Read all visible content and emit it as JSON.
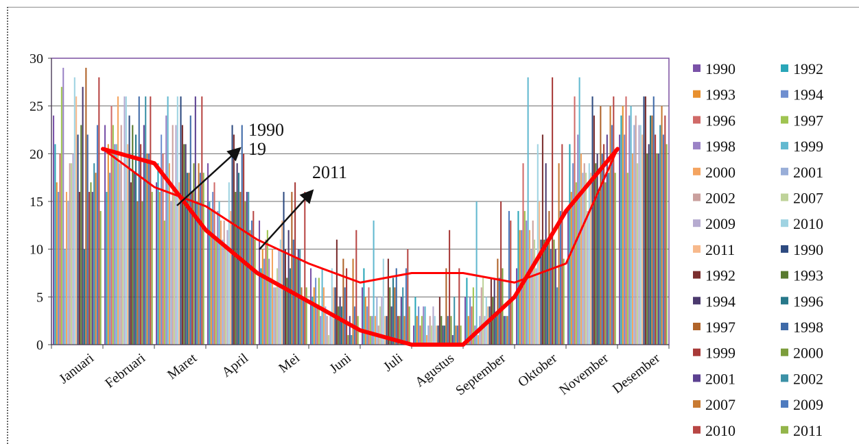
{
  "chart_data": {
    "type": "bar",
    "categories": [
      "Januari",
      "Februari",
      "Maret",
      "April",
      "Mei",
      "Juni",
      "Juli",
      "Agustus",
      "September",
      "Oktober",
      "November",
      "Desember"
    ],
    "ylim": [
      0,
      30
    ],
    "yticks": [
      0,
      5,
      10,
      15,
      20,
      25,
      30
    ],
    "grid": true,
    "legend_position": "right",
    "series": [
      {
        "name": "1990",
        "color": "#7a52a8",
        "values": [
          24,
          23,
          17,
          19,
          13,
          8,
          6,
          2,
          5,
          8,
          14,
          22
        ]
      },
      {
        "name": "1992",
        "color": "#2aa6b8",
        "values": [
          21,
          16,
          19,
          15,
          8,
          5,
          8,
          5,
          7,
          14,
          21,
          24
        ]
      },
      {
        "name": "1993",
        "color": "#e8902e",
        "values": [
          17,
          21,
          16,
          14,
          10,
          6,
          5,
          3,
          3,
          12,
          16,
          25
        ]
      },
      {
        "name": "1994",
        "color": "#6f8fd0",
        "values": [
          16,
          18,
          22,
          16,
          9,
          7,
          4,
          4,
          5,
          12,
          19,
          22
        ]
      },
      {
        "name": "1996",
        "color": "#d06a68",
        "values": [
          20,
          25,
          20,
          17,
          11,
          4,
          6,
          2,
          4,
          19,
          26,
          26
        ]
      },
      {
        "name": "1997",
        "color": "#9fc451",
        "values": [
          27,
          23,
          13,
          11,
          12,
          7,
          3,
          3,
          6,
          14,
          17,
          18
        ]
      },
      {
        "name": "1998",
        "color": "#9b83c6",
        "values": [
          29,
          21,
          24,
          14,
          9,
          3,
          3,
          4,
          2,
          13,
          22,
          24
        ]
      },
      {
        "name": "1999",
        "color": "#62b9d0",
        "values": [
          10,
          21,
          26,
          15,
          7,
          8,
          13,
          4,
          15,
          28,
          28,
          25
        ]
      },
      {
        "name": "2000",
        "color": "#f4a460",
        "values": [
          16,
          26,
          19,
          13,
          10,
          6,
          3,
          1,
          1,
          12,
          20,
          20
        ]
      },
      {
        "name": "2001",
        "color": "#99aed8",
        "values": [
          15,
          19,
          15,
          11,
          6,
          4,
          5,
          2,
          3,
          10,
          18,
          23
        ]
      },
      {
        "name": "2002",
        "color": "#caa09e",
        "values": [
          19,
          23,
          23,
          13,
          6,
          3,
          2,
          3,
          6,
          13,
          19,
          24
        ]
      },
      {
        "name": "2007",
        "color": "#bfd39a",
        "values": [
          19,
          15,
          16,
          10,
          8,
          1,
          4,
          2,
          7,
          11,
          18,
          19
        ]
      },
      {
        "name": "2009",
        "color": "#b6abd0",
        "values": [
          20,
          26,
          23,
          12,
          10,
          3,
          5,
          4,
          3,
          8,
          14,
          23
        ]
      },
      {
        "name": "2010",
        "color": "#9fd3e2",
        "values": [
          28,
          26,
          26,
          17,
          11,
          8,
          9,
          3,
          5,
          21,
          19,
          23
        ]
      },
      {
        "name": "2011",
        "color": "#f7b98c",
        "values": [
          26,
          21,
          17,
          14,
          13,
          6,
          3,
          2,
          4,
          15,
          18,
          22
        ]
      },
      {
        "name": "1990",
        "color": "#2d4a80",
        "values": [
          22,
          24,
          26,
          23,
          16,
          6,
          3,
          2,
          4,
          11,
          26,
          26
        ]
      },
      {
        "name": "1992",
        "color": "#7a2e2e",
        "values": [
          16,
          17,
          23,
          22,
          10,
          11,
          9,
          5,
          7,
          22,
          24,
          26
        ]
      },
      {
        "name": "1993",
        "color": "#587a2f",
        "values": [
          23,
          23,
          21,
          16,
          7,
          4,
          6,
          3,
          5,
          11,
          19,
          20
        ]
      },
      {
        "name": "1994",
        "color": "#4b3a6e",
        "values": [
          27,
          18,
          21,
          19,
          12,
          5,
          4,
          2,
          7,
          19,
          20,
          21
        ]
      },
      {
        "name": "1996",
        "color": "#27788a",
        "values": [
          10,
          22,
          18,
          18,
          8,
          4,
          7,
          2,
          3,
          11,
          16,
          24
        ]
      },
      {
        "name": "1997",
        "color": "#b0642a",
        "values": [
          29,
          15,
          18,
          16,
          16,
          9,
          6,
          8,
          9,
          14,
          25,
          24
        ]
      },
      {
        "name": "1998",
        "color": "#3f6aa8",
        "values": [
          22,
          26,
          24,
          23,
          11,
          6,
          8,
          3,
          7,
          10,
          20,
          26
        ]
      },
      {
        "name": "1999",
        "color": "#a83a38",
        "values": [
          16,
          21,
          16,
          20,
          17,
          8,
          3,
          12,
          15,
          28,
          21,
          22
        ]
      },
      {
        "name": "2000",
        "color": "#7c9d3c",
        "values": [
          17,
          15,
          19,
          15,
          9,
          1,
          3,
          3,
          8,
          11,
          17,
          20
        ]
      },
      {
        "name": "2001",
        "color": "#5c4191",
        "values": [
          16,
          23,
          26,
          16,
          10,
          3,
          5,
          1,
          3,
          10,
          22,
          20
        ]
      },
      {
        "name": "2002",
        "color": "#3c91a6",
        "values": [
          19,
          26,
          15,
          16,
          10,
          1,
          6,
          5,
          3,
          6,
          18,
          23
        ]
      },
      {
        "name": "2007",
        "color": "#c87a32",
        "values": [
          18,
          20,
          19,
          12,
          6,
          9,
          3,
          2,
          3,
          19,
          25,
          25
        ]
      },
      {
        "name": "2009",
        "color": "#4e7bbf",
        "values": [
          23,
          20,
          18,
          13,
          5,
          4,
          8,
          2,
          14,
          14,
          23,
          22
        ]
      },
      {
        "name": "2010",
        "color": "#b84644",
        "values": [
          28,
          26,
          26,
          14,
          16,
          12,
          10,
          8,
          13,
          21,
          26,
          24
        ]
      },
      {
        "name": "2011",
        "color": "#93b54a",
        "values": [
          14,
          16,
          18,
          11,
          6,
          3,
          4,
          2,
          5,
          9,
          18,
          21
        ]
      }
    ],
    "trend_lines": [
      {
        "name": "1990",
        "color": "#ff0000",
        "width": 6,
        "values": [
          null,
          20.5,
          19.0,
          12.0,
          7.5,
          4.5,
          1.5,
          0,
          0,
          5.0,
          14.0,
          20.5
        ]
      },
      {
        "name": "2011",
        "color": "#ff0000",
        "width": 3,
        "values": [
          null,
          20.5,
          16.5,
          14.5,
          11.0,
          8.5,
          6.5,
          7.5,
          7.5,
          6.5,
          8.5,
          20.5
        ]
      }
    ],
    "annotations": [
      {
        "text": "1990"
      },
      {
        "text": "2011"
      },
      {
        "text": "19"
      }
    ]
  }
}
